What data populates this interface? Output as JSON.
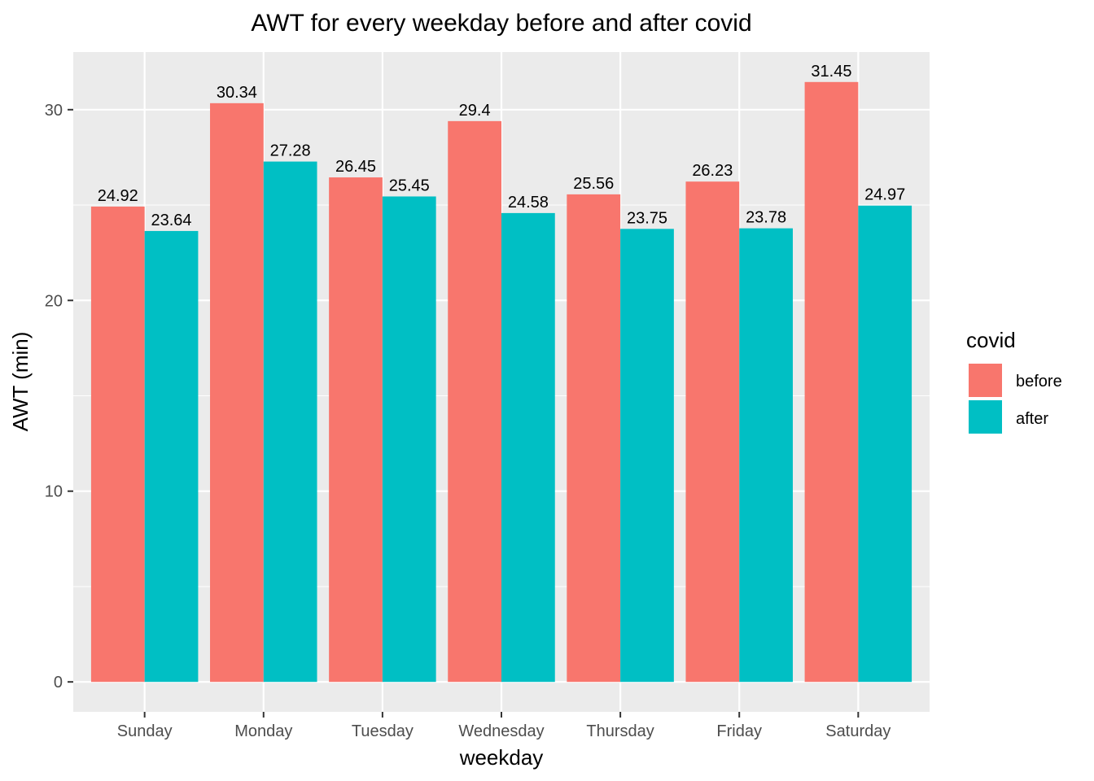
{
  "chart_data": {
    "type": "bar",
    "title": "AWT for every weekday before and after covid",
    "xlabel": "weekday",
    "ylabel": "AWT (min)",
    "categories": [
      "Sunday",
      "Monday",
      "Tuesday",
      "Wednesday",
      "Thursday",
      "Friday",
      "Saturday"
    ],
    "series": [
      {
        "name": "before",
        "color": "#F8766D",
        "values": [
          24.92,
          30.34,
          26.45,
          29.4,
          25.56,
          26.23,
          31.45
        ],
        "labels": [
          "24.92",
          "30.34",
          "26.45",
          "29.4",
          "25.56",
          "26.23",
          "31.45"
        ]
      },
      {
        "name": "after",
        "color": "#00BFC4",
        "values": [
          23.64,
          27.28,
          25.45,
          24.58,
          23.75,
          23.78,
          24.97
        ],
        "labels": [
          "23.64",
          "27.28",
          "25.45",
          "24.58",
          "23.75",
          "23.78",
          "24.97"
        ]
      }
    ],
    "ylim": [
      -1.57,
      33.02
    ],
    "yticks": [
      0,
      10,
      20,
      30
    ],
    "yticks_minor": [
      5,
      15,
      25
    ],
    "grid": true,
    "panel_background": "#EBEBEB",
    "legend": {
      "title": "covid",
      "position": "right"
    }
  }
}
